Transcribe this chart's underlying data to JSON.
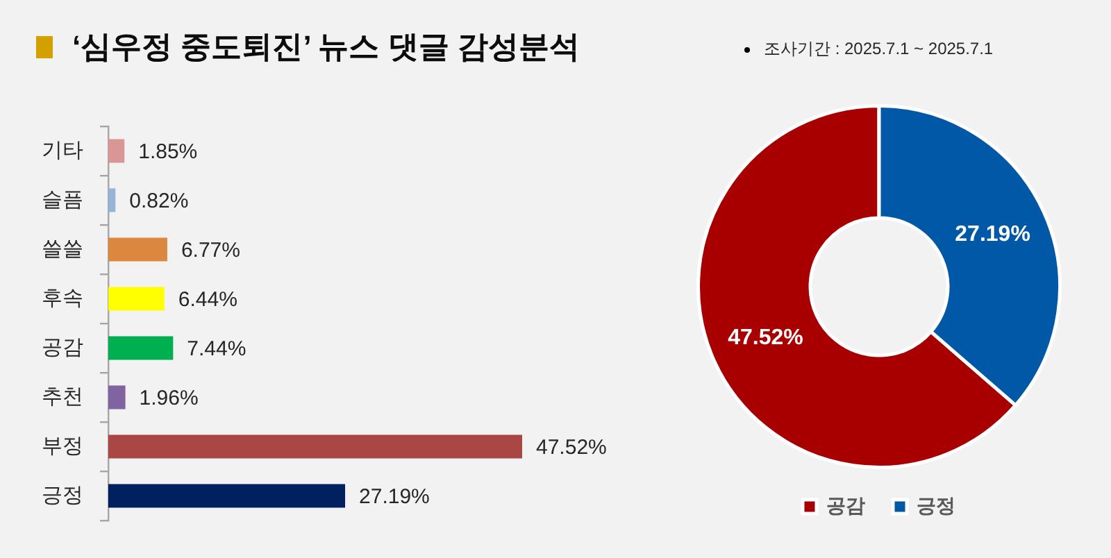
{
  "chart_data": [
    {
      "type": "bar",
      "orientation": "horizontal",
      "title": "‘심우정 중도퇴진’ 뉴스 댓글 감성분석",
      "categories": [
        "기타",
        "슬픔",
        "쓸쓸",
        "후속",
        "공감",
        "추천",
        "부정",
        "긍정"
      ],
      "values": [
        1.85,
        0.82,
        6.77,
        6.44,
        7.44,
        1.96,
        47.52,
        27.19
      ],
      "colors": [
        "#d99694",
        "#95b3d7",
        "#dc873f",
        "#ffff00",
        "#00b050",
        "#8064a2",
        "#aa4643",
        "#002060"
      ],
      "value_labels": [
        "1.85%",
        "0.82%",
        "6.77%",
        "6.44%",
        "7.44%",
        "1.96%",
        "47.52%",
        "27.19%"
      ]
    },
    {
      "type": "donut",
      "annotations": [
        "조사기간 : 2025.7.1 ~ 2025.7.1"
      ],
      "categories": [
        "공감",
        "긍정"
      ],
      "values": [
        47.52,
        27.19
      ],
      "colors": [
        "#a80000",
        "#0058a6"
      ],
      "value_labels": [
        "47.52%",
        "27.19%"
      ],
      "legend": "bottom"
    }
  ]
}
